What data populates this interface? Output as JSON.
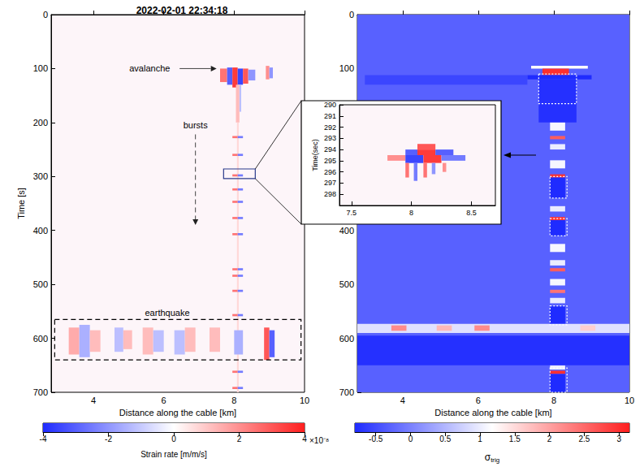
{
  "chart_data": [
    {
      "type": "heatmap",
      "title": "2022-02-01 22:34:18",
      "xlabel": "Distance along the cable [km]",
      "ylabel": "Time [s]",
      "xlim": [
        2.8,
        10
      ],
      "xticks": [
        4,
        6,
        8,
        10
      ],
      "ylim": [
        0,
        700
      ],
      "yticks": [
        0,
        100,
        200,
        300,
        400,
        500,
        600,
        700
      ],
      "cells": [
        [
          7.6,
          7.8,
          100,
          125,
          2.5
        ],
        [
          7.8,
          7.95,
          98,
          130,
          -3
        ],
        [
          7.95,
          8.1,
          98,
          135,
          3.5
        ],
        [
          8.1,
          8.25,
          100,
          130,
          -3.5
        ],
        [
          8.25,
          8.4,
          100,
          128,
          3
        ],
        [
          8.4,
          8.6,
          102,
          122,
          -2
        ],
        [
          8.9,
          9.0,
          95,
          120,
          2
        ],
        [
          9.0,
          9.1,
          98,
          118,
          -2
        ],
        [
          8.05,
          8.15,
          130,
          200,
          1.2
        ],
        [
          8.15,
          8.2,
          130,
          180,
          -1.2
        ],
        [
          8.08,
          8.13,
          200,
          700,
          0.7
        ],
        [
          7.95,
          8.1,
          225,
          229,
          2.5
        ],
        [
          8.1,
          8.25,
          225,
          229,
          -2.5
        ],
        [
          7.95,
          8.1,
          258,
          262,
          2.5
        ],
        [
          8.1,
          8.25,
          258,
          262,
          -2.5
        ],
        [
          7.95,
          8.1,
          296,
          300,
          2.5
        ],
        [
          8.1,
          8.25,
          296,
          300,
          -2.5
        ],
        [
          7.95,
          8.1,
          322,
          326,
          2.5
        ],
        [
          8.1,
          8.25,
          322,
          326,
          -2.5
        ],
        [
          7.95,
          8.1,
          345,
          349,
          2.5
        ],
        [
          8.1,
          8.25,
          345,
          349,
          -2.5
        ],
        [
          7.95,
          8.1,
          375,
          379,
          2.5
        ],
        [
          8.1,
          8.25,
          375,
          379,
          -2.5
        ],
        [
          7.95,
          8.1,
          405,
          409,
          2.5
        ],
        [
          8.1,
          8.25,
          405,
          409,
          -2.5
        ],
        [
          7.95,
          8.1,
          470,
          474,
          2.5
        ],
        [
          8.1,
          8.25,
          470,
          474,
          -2.5
        ],
        [
          7.95,
          8.1,
          482,
          486,
          2.5
        ],
        [
          8.1,
          8.25,
          482,
          486,
          -2.5
        ],
        [
          7.95,
          8.1,
          510,
          514,
          2.5
        ],
        [
          8.1,
          8.25,
          510,
          514,
          -2.5
        ],
        [
          7.95,
          8.1,
          555,
          559,
          2.5
        ],
        [
          8.1,
          8.25,
          555,
          559,
          -2.5
        ],
        [
          7.95,
          8.1,
          660,
          664,
          2.5
        ],
        [
          8.1,
          8.25,
          660,
          664,
          -2.5
        ],
        [
          7.95,
          8.1,
          690,
          694,
          2.5
        ],
        [
          8.1,
          8.25,
          690,
          694,
          -2.5
        ],
        [
          3.3,
          3.6,
          580,
          630,
          1.5
        ],
        [
          3.6,
          3.9,
          575,
          635,
          -1.5
        ],
        [
          3.9,
          4.2,
          585,
          625,
          1.2
        ],
        [
          4.6,
          4.85,
          580,
          625,
          -1.2
        ],
        [
          4.85,
          5.1,
          585,
          620,
          1.2
        ],
        [
          5.4,
          5.7,
          580,
          630,
          1.2
        ],
        [
          5.7,
          6.0,
          585,
          625,
          -1.2
        ],
        [
          6.3,
          6.6,
          585,
          630,
          -1.2
        ],
        [
          6.6,
          6.9,
          580,
          625,
          1.2
        ],
        [
          7.3,
          7.6,
          580,
          625,
          1.2
        ],
        [
          8.0,
          8.25,
          585,
          630,
          -1.5
        ],
        [
          8.85,
          9.0,
          580,
          640,
          3
        ],
        [
          9.0,
          9.15,
          585,
          635,
          -3
        ]
      ],
      "colorbar": {
        "label": "Strain rate [m/m/s]",
        "scale": "×10⁻⁸",
        "lim": [
          -4,
          4
        ],
        "ticks": [
          -4,
          -2,
          0,
          2,
          4
        ],
        "colors": [
          "#1f2bff",
          "#ffffff",
          "#ff1f1f"
        ]
      },
      "annotations": [
        {
          "text": "avalanche",
          "at": [
            5.6,
            100
          ],
          "arrow": [
            [
              6.45,
              100
            ],
            [
              7.5,
              100
            ]
          ],
          "line_style": "solid"
        },
        {
          "text": "bursts",
          "at": [
            6.9,
            205
          ],
          "arrow": [
            [
              6.9,
              222
            ],
            [
              6.9,
              390
            ]
          ],
          "line_style": "dashed"
        },
        {
          "text": "earthquake",
          "at": [
            6.1,
            553
          ]
        }
      ],
      "boxes": [
        {
          "x": [
            2.9,
            9.9
          ],
          "y": [
            565,
            640
          ],
          "color": "#000000",
          "line_style": "dashed"
        },
        {
          "x": [
            7.7,
            8.6
          ],
          "y": [
            286,
            304
          ],
          "color": "#2a3a8c",
          "line_style": "solid"
        }
      ]
    },
    {
      "type": "heatmap",
      "xlabel": "Distance along the cable [km]",
      "xlim": [
        2.8,
        10
      ],
      "xticks": [
        4,
        6,
        8,
        10
      ],
      "ylim": [
        0,
        700
      ],
      "yticks": [
        0,
        100,
        400,
        500,
        600,
        700
      ],
      "cells": [
        [
          2.8,
          10,
          0,
          700,
          -0.3
        ],
        [
          7.4,
          8.9,
          95,
          100,
          1.2
        ],
        [
          7.7,
          8.4,
          100,
          112,
          3
        ],
        [
          7.3,
          9.0,
          112,
          120,
          -0.8
        ],
        [
          7.6,
          8.6,
          120,
          200,
          -0.75
        ],
        [
          3,
          7.3,
          112,
          130,
          -0.55
        ],
        [
          7.9,
          8.3,
          200,
          215,
          1.1
        ],
        [
          7.9,
          8.3,
          240,
          250,
          1.0
        ],
        [
          7.9,
          8.3,
          270,
          285,
          1.1
        ],
        [
          7.9,
          8.3,
          355,
          365,
          1.0
        ],
        [
          7.9,
          8.3,
          425,
          440,
          1.1
        ],
        [
          7.9,
          8.3,
          455,
          465,
          1.0
        ],
        [
          7.9,
          8.3,
          490,
          502,
          1.1
        ],
        [
          7.9,
          8.3,
          525,
          535,
          1.0
        ],
        [
          7.9,
          8.3,
          650,
          658,
          1.0
        ],
        [
          7.9,
          8.3,
          225,
          231,
          2.6
        ],
        [
          7.9,
          8.3,
          296,
          302,
          3
        ],
        [
          7.9,
          8.3,
          375,
          381,
          3
        ],
        [
          7.9,
          8.3,
          470,
          476,
          2.6
        ],
        [
          7.9,
          8.3,
          510,
          516,
          2.4
        ],
        [
          7.9,
          8.3,
          660,
          666,
          3
        ],
        [
          7.9,
          8.3,
          302,
          340,
          -0.8
        ],
        [
          7.9,
          8.3,
          381,
          410,
          -0.8
        ],
        [
          7.9,
          8.3,
          540,
          575,
          -0.8
        ],
        [
          7.9,
          8.3,
          666,
          700,
          -0.8
        ],
        [
          2.8,
          10,
          573,
          590,
          0.9
        ],
        [
          3.7,
          4.1,
          576,
          586,
          2.2
        ],
        [
          4.9,
          5.3,
          576,
          586,
          1.8
        ],
        [
          5.9,
          6.3,
          576,
          586,
          2.2
        ],
        [
          8.7,
          9.1,
          576,
          586,
          1.6
        ],
        [
          2.8,
          10,
          595,
          650,
          -0.75
        ]
      ],
      "colorbar": {
        "label": "σtrig",
        "lim": [
          -0.8,
          3.15
        ],
        "ticks": [
          -0.5,
          0,
          0.5,
          1,
          1.5,
          2,
          2.5,
          3
        ],
        "colors": [
          "#1f2bff",
          "#ffffff",
          "#ff1f1f"
        ]
      },
      "boxes": [
        {
          "x": [
            7.6,
            8.6
          ],
          "y": [
            110,
            165
          ],
          "color": "#ffffff",
          "line_style": "dotted"
        },
        {
          "x": [
            7.9,
            8.35
          ],
          "y": [
            300,
            340
          ],
          "color": "#ffffff",
          "line_style": "dotted"
        },
        {
          "x": [
            7.9,
            8.35
          ],
          "y": [
            378,
            410
          ],
          "color": "#ffffff",
          "line_style": "dotted"
        },
        {
          "x": [
            7.9,
            8.35
          ],
          "y": [
            540,
            575
          ],
          "color": "#ffffff",
          "line_style": "dotted"
        },
        {
          "x": [
            7.9,
            8.35
          ],
          "y": [
            655,
            700
          ],
          "color": "#ffffff",
          "line_style": "dotted"
        }
      ]
    },
    {
      "type": "heatmap",
      "ylabel": "Time(sec)",
      "xlim": [
        7.4,
        8.7
      ],
      "xticks": [
        7.5,
        8,
        8.5
      ],
      "ylim": [
        290,
        299
      ],
      "yticks": [
        290,
        291,
        292,
        293,
        294,
        295,
        296,
        297,
        298
      ],
      "cells": [
        [
          8.05,
          8.2,
          293.5,
          294,
          3
        ],
        [
          7.95,
          8.05,
          294,
          294.5,
          -3
        ],
        [
          8.05,
          8.2,
          294,
          294.5,
          3.5
        ],
        [
          8.2,
          8.35,
          294,
          294.5,
          -3
        ],
        [
          7.8,
          7.95,
          294.5,
          295,
          2
        ],
        [
          7.95,
          8.1,
          294.5,
          295.2,
          -3.5
        ],
        [
          8.1,
          8.25,
          294.5,
          295.2,
          3.5
        ],
        [
          8.25,
          8.45,
          294.5,
          295,
          -2.5
        ],
        [
          7.95,
          7.98,
          295.2,
          296.5,
          2.5
        ],
        [
          8.02,
          8.05,
          295.2,
          296.8,
          -2.5
        ],
        [
          8.1,
          8.13,
          295.2,
          296.5,
          2.5
        ],
        [
          8.17,
          8.2,
          295.2,
          296.2,
          -2
        ],
        [
          8.26,
          8.29,
          295.2,
          296,
          2
        ]
      ]
    }
  ]
}
